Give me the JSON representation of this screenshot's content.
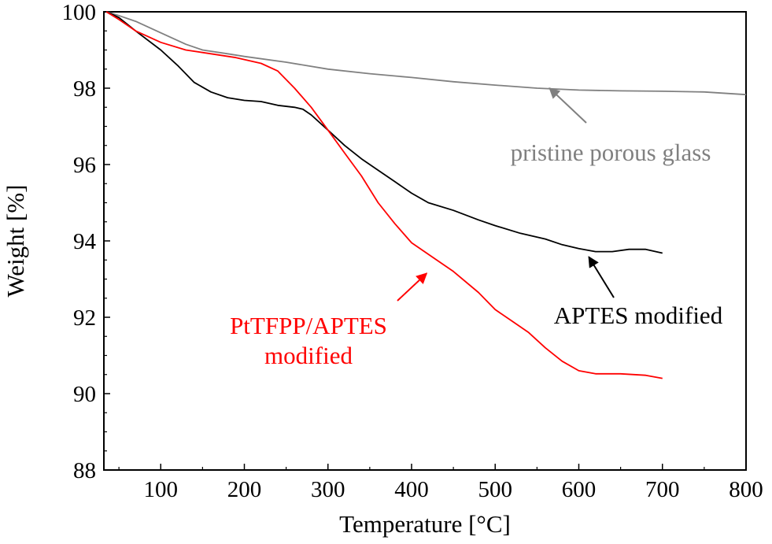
{
  "chart_data": {
    "type": "line",
    "xlabel": "Temperature [°C]",
    "ylabel": "Weight [%]",
    "xlim": [
      32,
      800
    ],
    "ylim": [
      88,
      100
    ],
    "xticks": [
      100,
      200,
      300,
      400,
      500,
      600,
      700,
      800
    ],
    "yticks": [
      88,
      90,
      92,
      94,
      96,
      98,
      100
    ],
    "grid": false,
    "legend": "none",
    "series": [
      {
        "name": "pristine porous glass",
        "color": "#808080",
        "points": [
          [
            35,
            100
          ],
          [
            50,
            99.9
          ],
          [
            70,
            99.75
          ],
          [
            100,
            99.45
          ],
          [
            130,
            99.15
          ],
          [
            150,
            99.0
          ],
          [
            180,
            98.9
          ],
          [
            200,
            98.83
          ],
          [
            250,
            98.68
          ],
          [
            300,
            98.5
          ],
          [
            350,
            98.38
          ],
          [
            400,
            98.28
          ],
          [
            450,
            98.17
          ],
          [
            500,
            98.08
          ],
          [
            550,
            98.0
          ],
          [
            600,
            97.95
          ],
          [
            650,
            97.93
          ],
          [
            700,
            97.92
          ],
          [
            750,
            97.9
          ],
          [
            800,
            97.83
          ]
        ]
      },
      {
        "name": "APTES modified",
        "color": "#000000",
        "points": [
          [
            35,
            100
          ],
          [
            50,
            99.85
          ],
          [
            70,
            99.5
          ],
          [
            100,
            99.0
          ],
          [
            120,
            98.6
          ],
          [
            140,
            98.15
          ],
          [
            160,
            97.9
          ],
          [
            180,
            97.75
          ],
          [
            200,
            97.68
          ],
          [
            220,
            97.65
          ],
          [
            240,
            97.55
          ],
          [
            260,
            97.5
          ],
          [
            270,
            97.45
          ],
          [
            280,
            97.3
          ],
          [
            300,
            96.9
          ],
          [
            320,
            96.5
          ],
          [
            340,
            96.15
          ],
          [
            360,
            95.85
          ],
          [
            380,
            95.55
          ],
          [
            400,
            95.25
          ],
          [
            420,
            95.0
          ],
          [
            450,
            94.8
          ],
          [
            480,
            94.55
          ],
          [
            500,
            94.4
          ],
          [
            530,
            94.2
          ],
          [
            560,
            94.05
          ],
          [
            580,
            93.9
          ],
          [
            600,
            93.8
          ],
          [
            620,
            93.72
          ],
          [
            640,
            93.72
          ],
          [
            660,
            93.78
          ],
          [
            680,
            93.78
          ],
          [
            700,
            93.68
          ]
        ]
      },
      {
        "name": "PtTFPP/APTES modified",
        "color": "#ff0000",
        "points": [
          [
            35,
            100
          ],
          [
            50,
            99.8
          ],
          [
            70,
            99.5
          ],
          [
            100,
            99.2
          ],
          [
            130,
            99.0
          ],
          [
            160,
            98.9
          ],
          [
            190,
            98.8
          ],
          [
            220,
            98.65
          ],
          [
            240,
            98.45
          ],
          [
            260,
            98.0
          ],
          [
            280,
            97.5
          ],
          [
            300,
            96.9
          ],
          [
            320,
            96.3
          ],
          [
            340,
            95.7
          ],
          [
            360,
            95.0
          ],
          [
            380,
            94.45
          ],
          [
            400,
            93.95
          ],
          [
            430,
            93.5
          ],
          [
            450,
            93.2
          ],
          [
            480,
            92.65
          ],
          [
            500,
            92.2
          ],
          [
            520,
            91.9
          ],
          [
            540,
            91.6
          ],
          [
            560,
            91.2
          ],
          [
            580,
            90.85
          ],
          [
            600,
            90.6
          ],
          [
            620,
            90.52
          ],
          [
            650,
            90.52
          ],
          [
            680,
            90.48
          ],
          [
            700,
            90.4
          ]
        ]
      }
    ],
    "annotations": [
      {
        "text": "pristine porous glass",
        "color": "#808080",
        "lines": [
          "pristine porous glass"
        ],
        "arrow_to": [
          565,
          98.0
        ]
      },
      {
        "text": "APTES modified",
        "color": "#000000",
        "lines": [
          "APTES modified"
        ],
        "arrow_to": [
          612,
          93.58
        ]
      },
      {
        "text": "PtTFPP/APTES modified",
        "color": "#ff0000",
        "lines": [
          "PtTFPP/APTES",
          "modified"
        ],
        "arrow_to": [
          418,
          93.15
        ]
      }
    ]
  }
}
